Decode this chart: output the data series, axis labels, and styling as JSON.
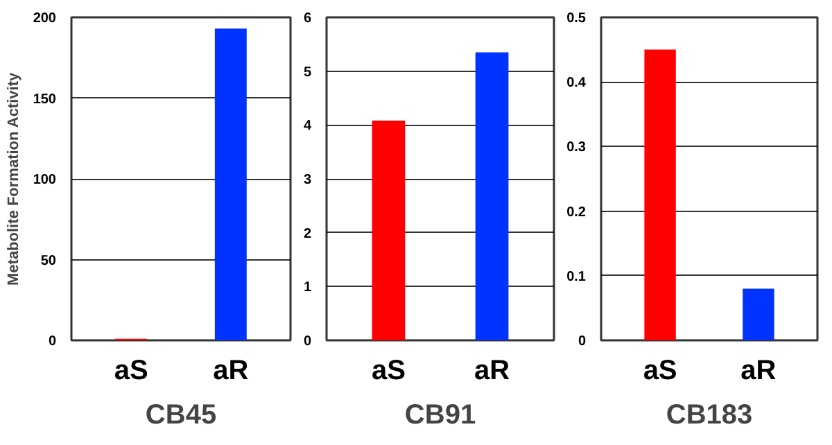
{
  "chart_data": [
    {
      "type": "bar",
      "title": "CB45",
      "ylabel": "Metabolite Formation Activity",
      "categories": [
        "aS",
        "aR"
      ],
      "values": [
        1,
        193
      ],
      "colors": [
        "#ff0000",
        "#0033ff"
      ],
      "ylim": [
        0,
        200
      ],
      "yticks": [
        0,
        50,
        100,
        150,
        200
      ],
      "grid": "y"
    },
    {
      "type": "bar",
      "title": "CB91",
      "categories": [
        "aS",
        "aR"
      ],
      "values": [
        4.08,
        5.35
      ],
      "colors": [
        "#ff0000",
        "#0033ff"
      ],
      "ylim": [
        0,
        6
      ],
      "yticks": [
        0,
        1,
        2,
        3,
        4,
        5,
        6
      ],
      "grid": "y"
    },
    {
      "type": "bar",
      "title": "CB183",
      "categories": [
        "aS",
        "aR"
      ],
      "values": [
        0.45,
        0.08
      ],
      "colors": [
        "#ff0000",
        "#0033ff"
      ],
      "ylim": [
        0,
        0.5
      ],
      "yticks": [
        0,
        0.1,
        0.2,
        0.3,
        0.4,
        0.5
      ],
      "grid": "y"
    }
  ]
}
